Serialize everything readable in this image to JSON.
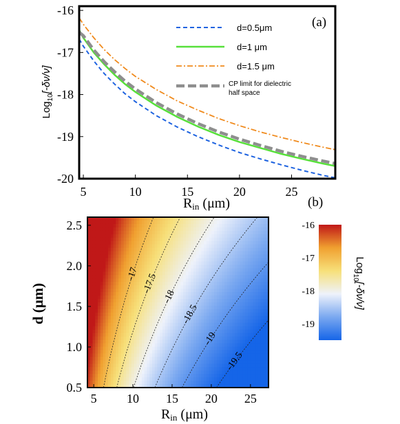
{
  "chart_data": [
    {
      "type": "line",
      "panel_label": "(a)",
      "ylabel": "Log10[-δν/ν]",
      "ylabel_parts": {
        "prefix": "Log",
        "sub": "10",
        "suffix": "[-δν/ν]"
      },
      "xlabel_parts": {
        "prefix": "R",
        "sub": "in",
        "suffix": " (μm)"
      },
      "xlim": [
        4.6,
        29.2
      ],
      "ylim": [
        -20.0,
        -15.9
      ],
      "xticks": [
        5,
        10,
        15,
        20,
        25
      ],
      "yticks": [
        -16,
        -17,
        -18,
        -19,
        -20
      ],
      "legend": {
        "placement": "top-right"
      },
      "series": [
        {
          "name": "d=0.5μm",
          "color": "#1e63e0",
          "style": "dashed",
          "x": [
            4.6,
            5,
            6,
            7,
            8,
            9,
            10,
            12,
            14,
            16,
            18,
            20,
            22,
            24,
            26,
            28,
            29.2
          ],
          "y": [
            -16.68,
            -16.85,
            -17.2,
            -17.5,
            -17.75,
            -17.98,
            -18.17,
            -18.5,
            -18.77,
            -19.0,
            -19.2,
            -19.38,
            -19.53,
            -19.67,
            -19.8,
            -19.92,
            -19.98
          ]
        },
        {
          "name": "d=1 μm",
          "color": "#57e03a",
          "style": "solid",
          "x": [
            4.6,
            5,
            6,
            7,
            8,
            9,
            10,
            12,
            14,
            16,
            18,
            20,
            22,
            24,
            26,
            28,
            29.2
          ],
          "y": [
            -16.47,
            -16.65,
            -17.0,
            -17.28,
            -17.53,
            -17.75,
            -17.94,
            -18.26,
            -18.53,
            -18.76,
            -18.96,
            -19.13,
            -19.27,
            -19.41,
            -19.53,
            -19.64,
            -19.7
          ]
        },
        {
          "name": "d=1.5 μm",
          "color": "#f08a1c",
          "style": "dashdot",
          "x": [
            4.6,
            5,
            6,
            7,
            8,
            9,
            10,
            12,
            14,
            16,
            18,
            20,
            22,
            24,
            26,
            28,
            29.2
          ],
          "y": [
            -16.18,
            -16.33,
            -16.65,
            -16.93,
            -17.17,
            -17.38,
            -17.57,
            -17.88,
            -18.15,
            -18.37,
            -18.57,
            -18.74,
            -18.89,
            -19.02,
            -19.14,
            -19.25,
            -19.31
          ]
        },
        {
          "name": "CP limit for dielectric",
          "name_line2": "half space",
          "color": "#8e8e8e",
          "style": "longdash",
          "x": [
            4.6,
            5,
            6,
            7,
            8,
            9,
            10,
            12,
            14,
            16,
            18,
            20,
            22,
            24,
            26,
            28,
            29.2
          ],
          "y": [
            -16.52,
            -16.6,
            -16.94,
            -17.22,
            -17.46,
            -17.68,
            -17.87,
            -18.19,
            -18.46,
            -18.69,
            -18.89,
            -19.06,
            -19.21,
            -19.35,
            -19.47,
            -19.58,
            -19.64
          ]
        }
      ]
    },
    {
      "type": "heatmap",
      "panel_label": "(b)",
      "ylabel": "d (μm)",
      "xlabel_parts": {
        "prefix": "R",
        "sub": "in",
        "suffix": " (μm)"
      },
      "xlim": [
        4.2,
        27.3
      ],
      "ylim": [
        0.5,
        2.6
      ],
      "xticks": [
        5,
        10,
        15,
        20,
        25
      ],
      "yticks": [
        0.5,
        1.0,
        1.5,
        2.0,
        2.5
      ],
      "ytick_labels": [
        "0.5",
        "1.0",
        "1.5",
        "2.0",
        "2.5"
      ],
      "colorbar": {
        "range": [
          -19.5,
          -16.0
        ],
        "ticks": [
          -16,
          -17,
          -18,
          -19
        ],
        "label_parts": {
          "prefix": "Log",
          "sub": "10",
          "suffix": "[-δν/ν]"
        },
        "colors": [
          "#1565e8",
          "#7aa8f0",
          "#eef2fb",
          "#f7e07a",
          "#f0a030",
          "#c01818"
        ]
      },
      "contours": [
        {
          "level": -17,
          "label": "-17"
        },
        {
          "level": -17.5,
          "label": "-17.5"
        },
        {
          "level": -18,
          "label": "-18"
        },
        {
          "level": -18.5,
          "label": "-18.5"
        },
        {
          "level": -19,
          "label": "-19"
        },
        {
          "level": -19.5,
          "label": "-19.5"
        }
      ]
    }
  ]
}
